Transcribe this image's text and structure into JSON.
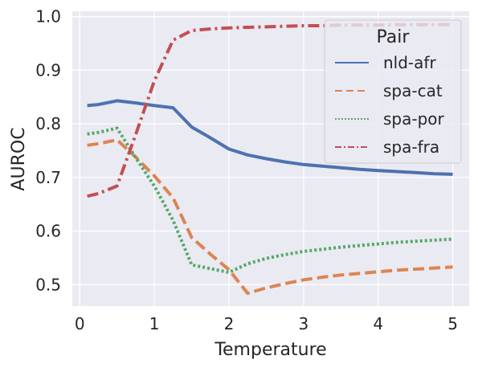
{
  "chart_data": {
    "type": "line",
    "xlabel": "Temperature",
    "ylabel": "AUROC",
    "xlim": [
      -0.1,
      5.22
    ],
    "ylim": [
      0.46,
      1.01
    ],
    "xticks": [
      0,
      1,
      2,
      3,
      4,
      5
    ],
    "yticks": [
      0.5,
      0.6,
      0.7,
      0.8,
      0.9,
      1.0
    ],
    "xtick_labels": [
      "0",
      "1",
      "2",
      "3",
      "4",
      "5"
    ],
    "ytick_labels": [
      "0.5",
      "0.6",
      "0.7",
      "0.8",
      "0.9",
      "1.0"
    ],
    "grid": true,
    "legend": {
      "title": "Pair",
      "position": "top-right"
    },
    "series": [
      {
        "name": "nld-afr",
        "color": "#4c72b0",
        "dash": "solid",
        "x": [
          0.1,
          0.25,
          0.5,
          0.75,
          1.0,
          1.25,
          1.5,
          1.75,
          2.0,
          2.25,
          2.5,
          2.75,
          3.0,
          3.25,
          3.5,
          3.75,
          4.0,
          4.25,
          4.5,
          4.75,
          5.0
        ],
        "y": [
          0.834,
          0.836,
          0.843,
          0.839,
          0.834,
          0.83,
          0.794,
          0.774,
          0.753,
          0.742,
          0.735,
          0.729,
          0.724,
          0.721,
          0.718,
          0.715,
          0.713,
          0.711,
          0.709,
          0.707,
          0.706
        ]
      },
      {
        "name": "spa-cat",
        "color": "#dd8452",
        "dash": "dashed",
        "x": [
          0.1,
          0.25,
          0.5,
          0.75,
          1.0,
          1.25,
          1.5,
          1.75,
          2.0,
          2.25,
          2.5,
          2.75,
          3.0,
          3.25,
          3.5,
          3.75,
          4.0,
          4.25,
          4.5,
          4.75,
          5.0
        ],
        "y": [
          0.76,
          0.763,
          0.77,
          0.738,
          0.703,
          0.662,
          0.588,
          0.557,
          0.528,
          0.484,
          0.494,
          0.502,
          0.509,
          0.514,
          0.518,
          0.521,
          0.524,
          0.527,
          0.529,
          0.531,
          0.533
        ]
      },
      {
        "name": "spa-por",
        "color": "#55a868",
        "dash": "dotted",
        "x": [
          0.1,
          0.25,
          0.5,
          0.75,
          1.0,
          1.25,
          1.5,
          1.75,
          2.0,
          2.25,
          2.5,
          2.75,
          3.0,
          3.25,
          3.5,
          3.75,
          4.0,
          4.25,
          4.5,
          4.75,
          5.0
        ],
        "y": [
          0.781,
          0.784,
          0.792,
          0.737,
          0.684,
          0.62,
          0.537,
          0.53,
          0.523,
          0.539,
          0.549,
          0.556,
          0.562,
          0.566,
          0.57,
          0.573,
          0.576,
          0.579,
          0.581,
          0.583,
          0.585
        ]
      },
      {
        "name": "spa-fra",
        "color": "#c44e52",
        "dash": "dashdot",
        "x": [
          0.1,
          0.25,
          0.5,
          0.75,
          1.0,
          1.25,
          1.5,
          1.75,
          2.0,
          2.25,
          2.5,
          2.75,
          3.0,
          3.25,
          3.5,
          3.75,
          4.0,
          4.25,
          4.5,
          4.75,
          5.0
        ],
        "y": [
          0.665,
          0.67,
          0.684,
          0.78,
          0.88,
          0.956,
          0.974,
          0.977,
          0.979,
          0.98,
          0.981,
          0.982,
          0.983,
          0.983,
          0.984,
          0.984,
          0.984,
          0.985,
          0.985,
          0.985,
          0.985
        ]
      }
    ]
  }
}
